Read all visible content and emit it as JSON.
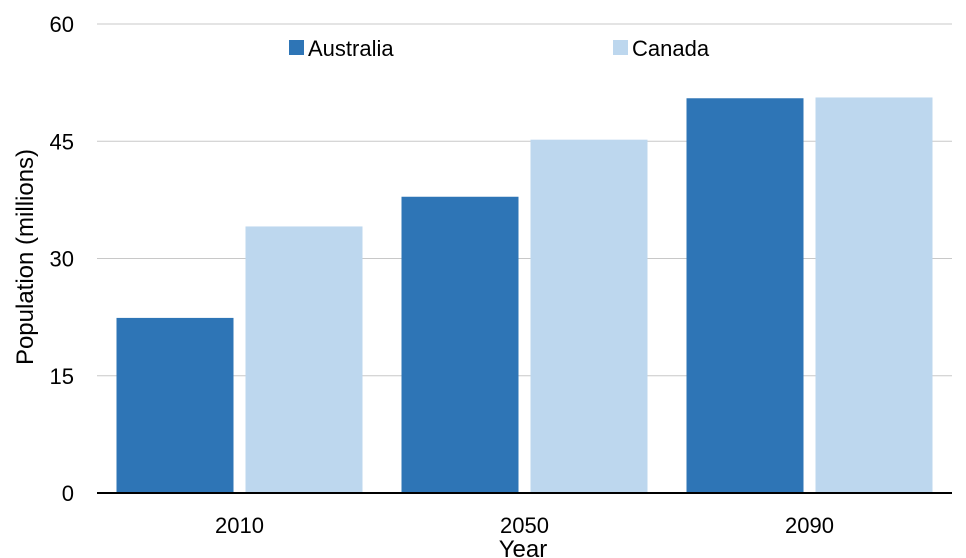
{
  "chart_data": {
    "type": "bar",
    "title": "",
    "xlabel": "Year",
    "ylabel": "Population (millions)",
    "categories": [
      "2010",
      "2050",
      "2090"
    ],
    "series": [
      {
        "name": "Australia",
        "values": [
          22.4,
          37.9,
          50.5
        ],
        "color": "#2e75b6"
      },
      {
        "name": "Canada",
        "values": [
          34.1,
          45.2,
          50.6
        ],
        "color": "#bdd7ee"
      }
    ],
    "ylim": [
      0,
      60
    ],
    "yticks": [
      0,
      15,
      30,
      45,
      60
    ],
    "grid": true,
    "legend": "top-center"
  }
}
